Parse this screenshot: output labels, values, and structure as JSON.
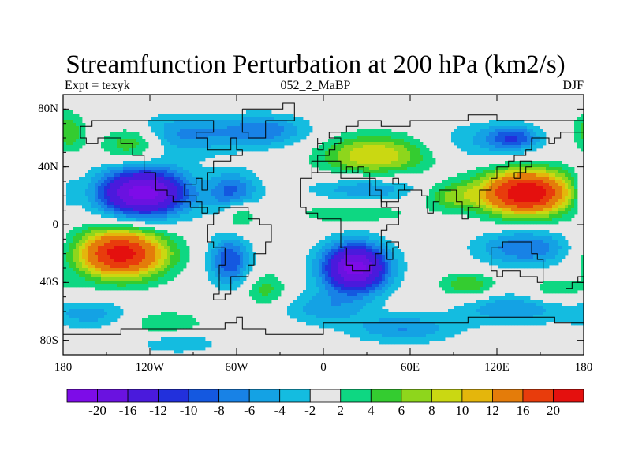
{
  "title": "Streamfunction Perturbation at 200 hPa (km2/s)",
  "left_label": "Expt = texyk",
  "center_label": "052_2_MaBP",
  "right_label": "DJF",
  "lat_labels": [
    "80N",
    "40N",
    "0",
    "40S",
    "80S"
  ],
  "lat_values": [
    80,
    40,
    0,
    -40,
    -80
  ],
  "lon_labels": [
    "180",
    "120W",
    "60W",
    "0",
    "60E",
    "120E",
    "180"
  ],
  "lon_values": [
    -180,
    -120,
    -60,
    0,
    60,
    120,
    180
  ],
  "colorbar": {
    "levels": [
      -20,
      -16,
      -12,
      -10,
      -8,
      -6,
      -4,
      -2,
      2,
      4,
      6,
      8,
      10,
      12,
      16,
      20
    ],
    "labels": [
      "-20",
      "-16",
      "-12",
      "-10",
      "-8",
      "-6",
      "-4",
      "-2",
      "2",
      "4",
      "6",
      "8",
      "10",
      "12",
      "16",
      "20"
    ],
    "colors": [
      "#7d0ce8",
      "#6a12e0",
      "#4a1adc",
      "#2230dc",
      "#1458e0",
      "#1882e6",
      "#14a2e4",
      "#14bce0",
      "#e6e6e6",
      "#0ed782",
      "#34cc30",
      "#8ed61c",
      "#cad812",
      "#e4b60c",
      "#e47c0a",
      "#e83c0c",
      "#e4100e"
    ]
  },
  "features": [
    {
      "lon": -125,
      "lat": 22,
      "amp": -22,
      "sx": 22,
      "sy": 12
    },
    {
      "lon": -62,
      "lat": 22,
      "amp": -9,
      "sx": 12,
      "sy": 10
    },
    {
      "lon": -105,
      "lat": 62,
      "amp": -7,
      "sx": 30,
      "sy": 10
    },
    {
      "lon": -40,
      "lat": 65,
      "amp": -7,
      "sx": 22,
      "sy": 8
    },
    {
      "lon": -132,
      "lat": 57,
      "amp": 9,
      "sx": 16,
      "sy": 9
    },
    {
      "lon": -176,
      "lat": 64,
      "amp": 6,
      "sx": 8,
      "sy": 10
    },
    {
      "lon": -178,
      "lat": 22,
      "amp": -5,
      "sx": 6,
      "sy": 10
    },
    {
      "lon": 35,
      "lat": 48,
      "amp": 10,
      "sx": 26,
      "sy": 10
    },
    {
      "lon": 30,
      "lat": 25,
      "amp": -6,
      "sx": 28,
      "sy": 6
    },
    {
      "lon": 20,
      "lat": 8,
      "amp": 4,
      "sx": 28,
      "sy": 5
    },
    {
      "lon": 110,
      "lat": 58,
      "amp": -4,
      "sx": 24,
      "sy": 10
    },
    {
      "lon": 132,
      "lat": 60,
      "amp": -8,
      "sx": 12,
      "sy": 6
    },
    {
      "lon": 140,
      "lat": 22,
      "amp": 24,
      "sx": 22,
      "sy": 11
    },
    {
      "lon": 88,
      "lat": 20,
      "amp": 6,
      "sx": 14,
      "sy": 7
    },
    {
      "lon": 140,
      "lat": -16,
      "amp": -8,
      "sx": 24,
      "sy": 9
    },
    {
      "lon": 160,
      "lat": -45,
      "amp": 4,
      "sx": 16,
      "sy": 6
    },
    {
      "lon": 130,
      "lat": -58,
      "amp": -6,
      "sx": 26,
      "sy": 8
    },
    {
      "lon": 100,
      "lat": -42,
      "amp": 6,
      "sx": 14,
      "sy": 6
    },
    {
      "lon": 55,
      "lat": -72,
      "amp": -6,
      "sx": 26,
      "sy": 7
    },
    {
      "lon": -140,
      "lat": -20,
      "amp": 22,
      "sx": 22,
      "sy": 12
    },
    {
      "lon": -160,
      "lat": -62,
      "amp": -5,
      "sx": 20,
      "sy": 7
    },
    {
      "lon": -110,
      "lat": -68,
      "amp": 4,
      "sx": 20,
      "sy": 6
    },
    {
      "lon": -65,
      "lat": -25,
      "amp": -10,
      "sx": 10,
      "sy": 12
    },
    {
      "lon": -58,
      "lat": 8,
      "amp": 6,
      "sx": 8,
      "sy": 8
    },
    {
      "lon": -40,
      "lat": -45,
      "amp": 5,
      "sx": 10,
      "sy": 8
    },
    {
      "lon": 22,
      "lat": -30,
      "amp": -22,
      "sx": 16,
      "sy": 12
    },
    {
      "lon": 0,
      "lat": -58,
      "amp": -5,
      "sx": 20,
      "sy": 8
    },
    {
      "lon": -100,
      "lat": -82,
      "amp": -4,
      "sx": 20,
      "sy": 5
    }
  ]
}
